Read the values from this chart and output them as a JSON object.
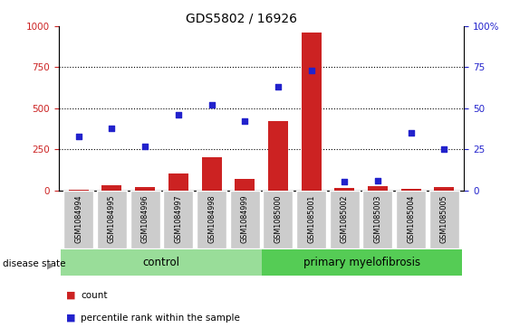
{
  "title": "GDS5802 / 16926",
  "samples": [
    "GSM1084994",
    "GSM1084995",
    "GSM1084996",
    "GSM1084997",
    "GSM1084998",
    "GSM1084999",
    "GSM1085000",
    "GSM1085001",
    "GSM1085002",
    "GSM1085003",
    "GSM1085004",
    "GSM1085005"
  ],
  "counts": [
    2,
    30,
    20,
    100,
    200,
    70,
    420,
    960,
    15,
    25,
    10,
    20
  ],
  "percentile_ranks": [
    33,
    38,
    27,
    46,
    52,
    42,
    63,
    73,
    5,
    6,
    35,
    25
  ],
  "left_ylim": [
    0,
    1000
  ],
  "right_ylim": [
    0,
    100
  ],
  "left_yticks": [
    0,
    250,
    500,
    750,
    1000
  ],
  "right_yticks": [
    0,
    25,
    50,
    75,
    100
  ],
  "bar_color": "#cc2222",
  "dot_color": "#2222cc",
  "control_color": "#99dd99",
  "myelofibrosis_color": "#55cc55",
  "tick_label_bg": "#cccccc",
  "background_color": "#ffffff",
  "legend_count_label": "count",
  "legend_pct_label": "percentile rank within the sample",
  "disease_state_label": "disease state",
  "control_label": "control",
  "myelofibrosis_label": "primary myelofibrosis",
  "n_control": 6,
  "n_total": 12
}
